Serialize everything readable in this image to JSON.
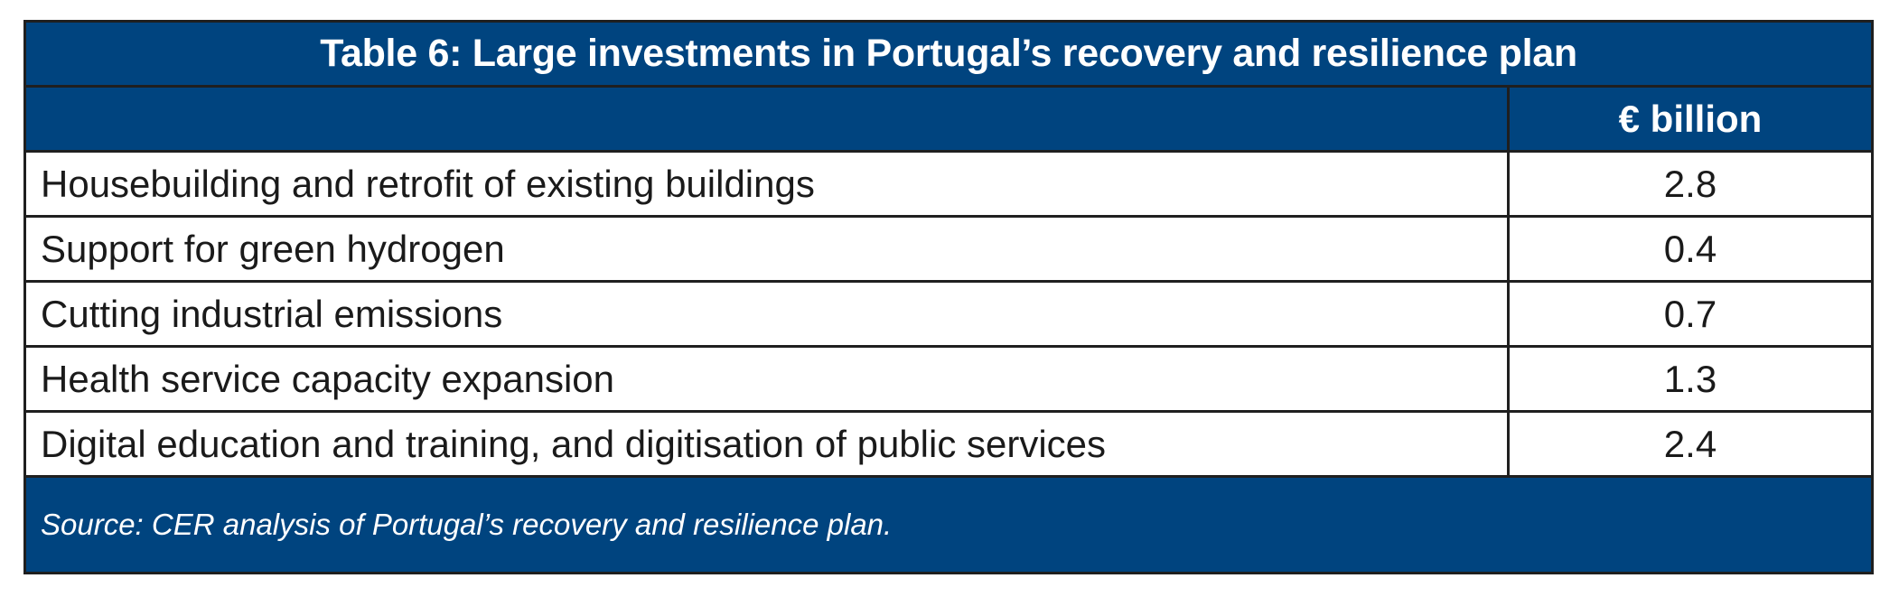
{
  "chart_data": {
    "type": "table",
    "title": "Table 6: Large investments in Portugal’s recovery and resilience plan",
    "column_headers": [
      "",
      "€ billion"
    ],
    "rows": [
      {
        "label": "Housebuilding and retrofit of existing buildings",
        "value": "2.8"
      },
      {
        "label": "Support for green hydrogen",
        "value": "0.4"
      },
      {
        "label": "Cutting industrial emissions",
        "value": "0.7"
      },
      {
        "label": "Health service capacity expansion",
        "value": "1.3"
      },
      {
        "label": "Digital education and training, and digitisation of public services",
        "value": "2.4"
      }
    ],
    "source": "Source: CER analysis of Portugal’s recovery and resilience plan."
  },
  "colors": {
    "header_background": "#00447f",
    "header_text": "#ffffff",
    "body_background": "#ffffff",
    "body_text": "#1a1a1a",
    "border": "#1f1f1f"
  }
}
